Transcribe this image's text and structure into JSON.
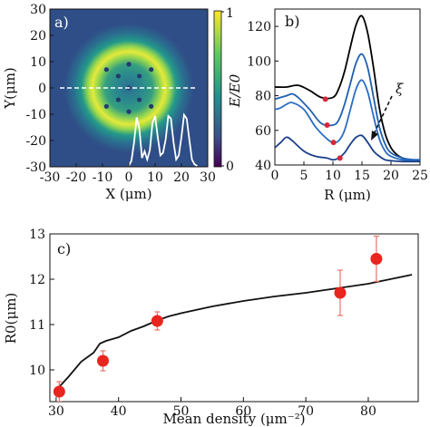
{
  "chart_data": [
    {
      "panel_label": "a)",
      "type": "heatmap",
      "xlabel": "X (μm)",
      "ylabel": "Y(μm)",
      "xlim": [
        -30,
        30
      ],
      "ylim": [
        -30,
        30
      ],
      "x_ticks": [
        "-30",
        "-20",
        "-10",
        "0",
        "10",
        "20",
        "30"
      ],
      "y_ticks": [
        "30",
        "20",
        "10",
        "0",
        "-10",
        "-20",
        "-30"
      ],
      "colorbar": {
        "min": 0,
        "max": 1,
        "ticks": [
          "1",
          "0"
        ]
      },
      "ring": {
        "center": [
          0,
          0
        ],
        "peak_radius": 14.5,
        "width": 5.5
      },
      "vortices": [
        {
          "x": 0,
          "y": 0
        },
        {
          "x": 0,
          "y": 9
        },
        {
          "x": 0,
          "y": -9
        },
        {
          "x": 4,
          "y": 4.5
        },
        {
          "x": -4,
          "y": 4.5
        },
        {
          "x": 4,
          "y": -4.5
        },
        {
          "x": -4,
          "y": -4.5
        },
        {
          "x": 8.5,
          "y": 7
        },
        {
          "x": -8.5,
          "y": 7
        },
        {
          "x": 8.5,
          "y": -7
        },
        {
          "x": -8.5,
          "y": -7
        }
      ],
      "cut_line_y": 0,
      "profile": {
        "x": [
          0,
          1,
          2,
          3,
          4,
          5,
          6,
          7,
          8,
          9,
          10,
          11,
          12,
          13,
          14,
          15,
          16,
          17,
          18,
          19,
          20,
          21,
          22,
          23,
          24,
          25,
          26
        ],
        "y": [
          0.0,
          0.1,
          0.45,
          0.92,
          0.72,
          0.15,
          0.28,
          0.12,
          0.3,
          0.82,
          0.95,
          0.55,
          0.2,
          0.25,
          0.5,
          0.95,
          0.9,
          0.45,
          0.12,
          0.2,
          0.55,
          0.97,
          0.9,
          0.5,
          0.12,
          0.03,
          0.0
        ]
      }
    },
    {
      "panel_label": "b)",
      "type": "line",
      "xlabel": "R (μm)",
      "ylabel": "E/E0",
      "xlim": [
        0,
        25
      ],
      "ylim": [
        40,
        130
      ],
      "x_ticks": [
        "0",
        "5",
        "10",
        "15",
        "20",
        "25"
      ],
      "y_ticks": [
        "40",
        "60",
        "80",
        "100",
        "120"
      ],
      "arrow_label": "ξ",
      "series": [
        {
          "color": "#000000",
          "x": [
            0,
            2,
            4,
            6,
            8,
            10,
            11,
            12,
            13,
            14,
            15,
            16,
            17,
            18,
            19,
            20,
            21,
            22,
            23,
            24,
            25
          ],
          "y": [
            85,
            85,
            86,
            83,
            79,
            79,
            84,
            94,
            108,
            121,
            126,
            116,
            96,
            73,
            58,
            50,
            46,
            44,
            43,
            43,
            43
          ],
          "marker": {
            "x": 8.7,
            "y": 78
          }
        },
        {
          "color": "#1f5fb0",
          "x": [
            0,
            2,
            3,
            4,
            6,
            8,
            10,
            11,
            12,
            13,
            14,
            15,
            16,
            17,
            18,
            19,
            20,
            22,
            24,
            25
          ],
          "y": [
            78,
            80,
            81,
            79,
            72,
            64,
            63,
            66,
            75,
            87,
            99,
            104,
            96,
            79,
            62,
            52,
            47,
            44,
            43,
            43
          ],
          "marker": {
            "x": 9.0,
            "y": 63
          }
        },
        {
          "color": "#2a6cc4",
          "x": [
            0,
            1,
            2,
            3,
            5,
            7,
            9,
            10,
            11,
            12,
            13,
            14,
            15,
            16,
            17,
            18,
            19,
            20,
            22,
            24,
            25
          ],
          "y": [
            72,
            73,
            75,
            76,
            72,
            62,
            55,
            53,
            54,
            60,
            72,
            84,
            89,
            82,
            68,
            55,
            48,
            45,
            43,
            43,
            43
          ],
          "marker": {
            "x": 10.1,
            "y": 53
          }
        },
        {
          "color": "#1a3f8a",
          "x": [
            0,
            1,
            2,
            3,
            5,
            7,
            9,
            10,
            11,
            12,
            13,
            14,
            15,
            16,
            17,
            18,
            19,
            20,
            22,
            24,
            25
          ],
          "y": [
            50,
            53,
            56,
            54,
            48,
            45,
            44,
            43,
            44,
            47,
            52,
            56,
            57,
            53,
            48,
            45,
            43,
            42.5,
            42,
            42,
            42
          ],
          "marker": {
            "x": 11.2,
            "y": 44
          }
        }
      ]
    },
    {
      "panel_label": "c)",
      "type": "scatter",
      "xlabel": "Mean density (μm⁻²)",
      "ylabel": "R0(μm)",
      "xlim": [
        29,
        88
      ],
      "ylim": [
        9.3,
        13
      ],
      "x_ticks": [
        "30",
        "40",
        "50",
        "60",
        "70",
        "80"
      ],
      "y_ticks": [
        "10",
        "11",
        "12",
        "13"
      ],
      "points": [
        {
          "x": 30.5,
          "y": 9.52,
          "err": 0.22
        },
        {
          "x": 37.5,
          "y": 10.2,
          "err": 0.22
        },
        {
          "x": 46.2,
          "y": 11.08,
          "err": 0.2
        },
        {
          "x": 75.5,
          "y": 11.7,
          "err": 0.5
        },
        {
          "x": 81.3,
          "y": 12.45,
          "err": 0.5
        }
      ],
      "line": {
        "x": [
          30,
          32,
          34,
          36,
          37,
          38,
          40,
          42,
          44,
          46,
          48,
          50,
          55,
          60,
          65,
          70,
          75,
          80,
          87
        ],
        "y": [
          9.55,
          9.85,
          10.18,
          10.38,
          10.58,
          10.64,
          10.72,
          10.86,
          10.96,
          11.08,
          11.18,
          11.25,
          11.4,
          11.52,
          11.62,
          11.7,
          11.8,
          11.9,
          12.1
        ]
      }
    }
  ]
}
